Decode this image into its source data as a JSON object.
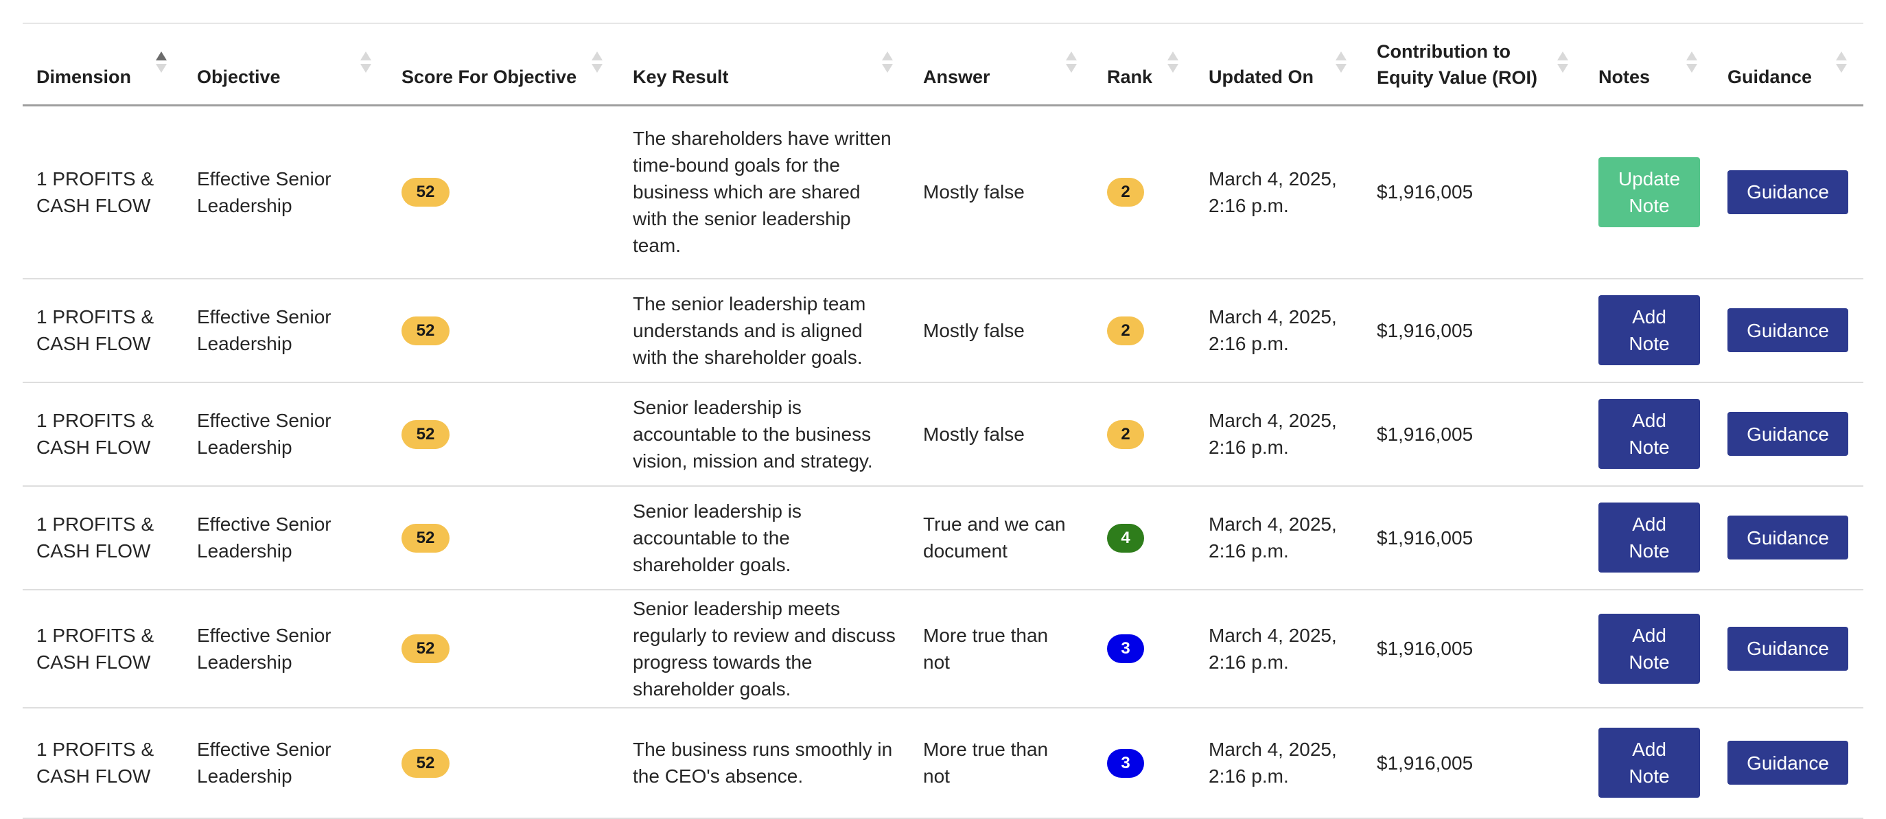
{
  "colors": {
    "score_badge": "#f5c24f",
    "rank_2": "#f5c24f",
    "rank_3": "#0000e8",
    "rank_4": "#2e7d1b",
    "add_note_button": "#2d3a8f",
    "update_note_button": "#55c48a",
    "guidance_button": "#2d3a8f"
  },
  "table": {
    "headers": {
      "dimension": "Dimension",
      "objective": "Objective",
      "score": "Score For Objective",
      "key_result": "Key Result",
      "answer": "Answer",
      "rank": "Rank",
      "updated_on": "Updated On",
      "roi_line1": "Contribution to",
      "roi_line2": "Equity Value (ROI)",
      "notes": "Notes",
      "guidance": "Guidance"
    },
    "sorted_column": "Dimension",
    "sort_direction": "ascending",
    "rows": [
      {
        "dimension_line1": "1 PROFITS &",
        "dimension_line2": "CASH FLOW",
        "objective_line1": "Effective Senior",
        "objective_line2": "Leadership",
        "score": "52",
        "key_result": "The shareholders have written time-bound goals for the business which are shared with the senior leadership team.",
        "answer": "Mostly false",
        "rank": "2",
        "updated_line1": "March 4, 2025,",
        "updated_line2": "2:16 p.m.",
        "roi": "$1,916,005",
        "note_line1": "Update",
        "note_line2": "Note",
        "guidance": "Guidance"
      },
      {
        "dimension_line1": "1 PROFITS &",
        "dimension_line2": "CASH FLOW",
        "objective_line1": "Effective Senior",
        "objective_line2": "Leadership",
        "score": "52",
        "key_result": "The senior leadership team understands and is aligned with the shareholder goals.",
        "answer": "Mostly false",
        "rank": "2",
        "updated_line1": "March 4, 2025,",
        "updated_line2": "2:16 p.m.",
        "roi": "$1,916,005",
        "note_line1": "Add",
        "note_line2": "Note",
        "guidance": "Guidance"
      },
      {
        "dimension_line1": "1 PROFITS &",
        "dimension_line2": "CASH FLOW",
        "objective_line1": "Effective Senior",
        "objective_line2": "Leadership",
        "score": "52",
        "key_result": "Senior leadership is accountable to the business vision, mission and strategy.",
        "answer": "Mostly false",
        "rank": "2",
        "updated_line1": "March 4, 2025,",
        "updated_line2": "2:16 p.m.",
        "roi": "$1,916,005",
        "note_line1": "Add",
        "note_line2": "Note",
        "guidance": "Guidance"
      },
      {
        "dimension_line1": "1 PROFITS &",
        "dimension_line2": "CASH FLOW",
        "objective_line1": "Effective Senior",
        "objective_line2": "Leadership",
        "score": "52",
        "key_result": "Senior leadership is accountable to the shareholder goals.",
        "answer": "True and we can document",
        "rank": "4",
        "updated_line1": "March 4, 2025,",
        "updated_line2": "2:16 p.m.",
        "roi": "$1,916,005",
        "note_line1": "Add",
        "note_line2": "Note",
        "guidance": "Guidance"
      },
      {
        "dimension_line1": "1 PROFITS &",
        "dimension_line2": "CASH FLOW",
        "objective_line1": "Effective Senior",
        "objective_line2": "Leadership",
        "score": "52",
        "key_result": "Senior leadership meets regularly to review and discuss progress towards the shareholder goals.",
        "answer": "More true than not",
        "rank": "3",
        "updated_line1": "March 4, 2025,",
        "updated_line2": "2:16 p.m.",
        "roi": "$1,916,005",
        "note_line1": "Add",
        "note_line2": "Note",
        "guidance": "Guidance"
      },
      {
        "dimension_line1": "1 PROFITS &",
        "dimension_line2": "CASH FLOW",
        "objective_line1": "Effective Senior",
        "objective_line2": "Leadership",
        "score": "52",
        "key_result": "The business runs smoothly in the CEO's absence.",
        "answer": "More true than not",
        "rank": "3",
        "updated_line1": "March 4, 2025,",
        "updated_line2": "2:16 p.m.",
        "roi": "$1,916,005",
        "note_line1": "Add",
        "note_line2": "Note",
        "guidance": "Guidance"
      }
    ]
  }
}
